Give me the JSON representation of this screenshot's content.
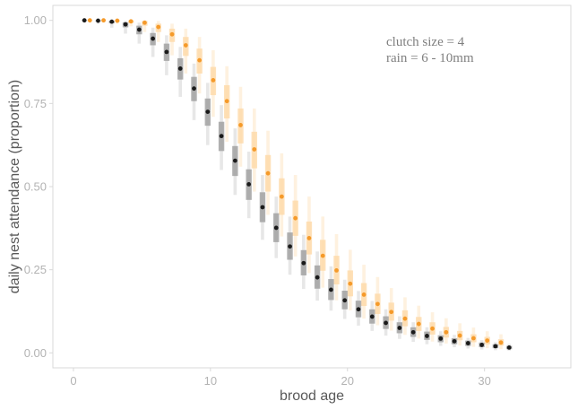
{
  "chart_data": {
    "type": "scatter",
    "title": "",
    "xlabel": "brood age",
    "ylabel": "daily nest attendance (proportion)",
    "xlim": [
      -1.5,
      36.3
    ],
    "ylim": [
      -0.045,
      1.045
    ],
    "x_ticks": [
      0,
      10,
      20,
      30
    ],
    "x_tick_labels": [
      "0",
      "10",
      "20",
      "30"
    ],
    "y_ticks": [
      0,
      0.25,
      0.5,
      0.75,
      1
    ],
    "y_tick_labels": [
      "0.00",
      "0.25",
      "0.50",
      "0.75",
      "1.00"
    ],
    "grid": false,
    "annotations": [
      "clutch size = 4",
      "rain = 6 - 10mm"
    ],
    "colors": {
      "orange": "#f59a2a",
      "orange_band": "#fdd7a3",
      "black": "#1a1a1a",
      "grey_band": "#9e9e9e",
      "frame": "#d9d9d9"
    },
    "series": [
      {
        "color": "#f59a2a",
        "x": [
          1.2,
          2.2,
          3.2,
          4.2,
          5.2,
          6.2,
          7.2,
          8.2,
          9.2,
          10.2,
          11.2,
          12.2,
          13.2,
          14.2,
          15.2,
          16.2,
          17.2,
          18.2,
          19.2,
          20.2,
          21.2,
          22.2,
          23.2,
          24.2,
          25.2,
          26.2,
          27.2,
          28.2,
          29.2,
          30.2,
          31.2
        ],
        "y": [
          1.0,
          1.0,
          0.999,
          0.997,
          0.993,
          0.98,
          0.958,
          0.925,
          0.88,
          0.82,
          0.757,
          0.685,
          0.612,
          0.54,
          0.47,
          0.405,
          0.345,
          0.292,
          0.248,
          0.208,
          0.175,
          0.147,
          0.123,
          0.103,
          0.087,
          0.073,
          0.062,
          0.052,
          0.044,
          0.037,
          0.031
        ],
        "inner_low": [
          1.0,
          1.0,
          0.997,
          0.992,
          0.984,
          0.965,
          0.935,
          0.893,
          0.84,
          0.775,
          0.705,
          0.63,
          0.555,
          0.485,
          0.415,
          0.352,
          0.296,
          0.247,
          0.206,
          0.17,
          0.141,
          0.117,
          0.097,
          0.08,
          0.066,
          0.055,
          0.046,
          0.038,
          0.032,
          0.026,
          0.022
        ],
        "inner_high": [
          1.0,
          1.0,
          1.0,
          1.0,
          0.998,
          0.99,
          0.975,
          0.95,
          0.915,
          0.86,
          0.805,
          0.735,
          0.665,
          0.595,
          0.525,
          0.458,
          0.395,
          0.34,
          0.292,
          0.248,
          0.21,
          0.178,
          0.151,
          0.128,
          0.108,
          0.092,
          0.078,
          0.066,
          0.056,
          0.048,
          0.041
        ],
        "outer_low": [
          0.996,
          0.994,
          0.99,
          0.982,
          0.965,
          0.935,
          0.895,
          0.84,
          0.78,
          0.71,
          0.635,
          0.56,
          0.485,
          0.415,
          0.35,
          0.29,
          0.24,
          0.196,
          0.158,
          0.128,
          0.103,
          0.083,
          0.067,
          0.054,
          0.043,
          0.034,
          0.028,
          0.022,
          0.018,
          0.014,
          0.011
        ],
        "outer_high": [
          1.0,
          1.0,
          1.0,
          1.0,
          1.0,
          0.998,
          0.99,
          0.975,
          0.95,
          0.91,
          0.862,
          0.8,
          0.735,
          0.668,
          0.6,
          0.535,
          0.47,
          0.41,
          0.357,
          0.31,
          0.265,
          0.228,
          0.195,
          0.167,
          0.142,
          0.122,
          0.104,
          0.089,
          0.076,
          0.065,
          0.056
        ]
      },
      {
        "color": "#1a1a1a",
        "x": [
          0.8,
          1.8,
          2.8,
          3.8,
          4.8,
          5.8,
          6.8,
          7.8,
          8.8,
          9.8,
          10.8,
          11.8,
          12.8,
          13.8,
          14.8,
          15.8,
          16.8,
          17.8,
          18.8,
          19.8,
          20.8,
          21.8,
          22.8,
          23.8,
          24.8,
          25.8,
          26.8,
          27.8,
          28.8,
          29.8,
          30.8,
          31.8
        ],
        "y": [
          1.0,
          0.999,
          0.996,
          0.988,
          0.972,
          0.945,
          0.905,
          0.855,
          0.795,
          0.725,
          0.652,
          0.578,
          0.507,
          0.438,
          0.376,
          0.32,
          0.27,
          0.227,
          0.19,
          0.158,
          0.131,
          0.109,
          0.09,
          0.075,
          0.062,
          0.051,
          0.043,
          0.035,
          0.029,
          0.024,
          0.02,
          0.016
        ],
        "inner_low": [
          0.999,
          0.997,
          0.991,
          0.979,
          0.958,
          0.925,
          0.878,
          0.822,
          0.757,
          0.683,
          0.607,
          0.532,
          0.46,
          0.393,
          0.333,
          0.28,
          0.233,
          0.193,
          0.159,
          0.131,
          0.107,
          0.088,
          0.072,
          0.059,
          0.048,
          0.039,
          0.032,
          0.026,
          0.021,
          0.017,
          0.014,
          0.011
        ],
        "inner_high": [
          1.0,
          1.0,
          0.999,
          0.994,
          0.984,
          0.962,
          0.93,
          0.886,
          0.83,
          0.765,
          0.695,
          0.622,
          0.552,
          0.483,
          0.42,
          0.362,
          0.309,
          0.263,
          0.222,
          0.187,
          0.157,
          0.131,
          0.11,
          0.092,
          0.077,
          0.064,
          0.053,
          0.044,
          0.037,
          0.031,
          0.026,
          0.021
        ],
        "outer_low": [
          0.995,
          0.99,
          0.978,
          0.96,
          0.93,
          0.89,
          0.835,
          0.77,
          0.7,
          0.625,
          0.55,
          0.475,
          0.405,
          0.34,
          0.285,
          0.235,
          0.192,
          0.157,
          0.127,
          0.102,
          0.082,
          0.066,
          0.052,
          0.042,
          0.033,
          0.026,
          0.021,
          0.017,
          0.013,
          0.01,
          0.008,
          0.006
        ],
        "outer_high": [
          1.0,
          1.0,
          1.0,
          0.998,
          0.993,
          0.978,
          0.955,
          0.92,
          0.87,
          0.812,
          0.745,
          0.675,
          0.605,
          0.535,
          0.47,
          0.41,
          0.355,
          0.305,
          0.26,
          0.22,
          0.186,
          0.156,
          0.131,
          0.11,
          0.092,
          0.077,
          0.065,
          0.054,
          0.045,
          0.038,
          0.032,
          0.027
        ]
      }
    ]
  }
}
